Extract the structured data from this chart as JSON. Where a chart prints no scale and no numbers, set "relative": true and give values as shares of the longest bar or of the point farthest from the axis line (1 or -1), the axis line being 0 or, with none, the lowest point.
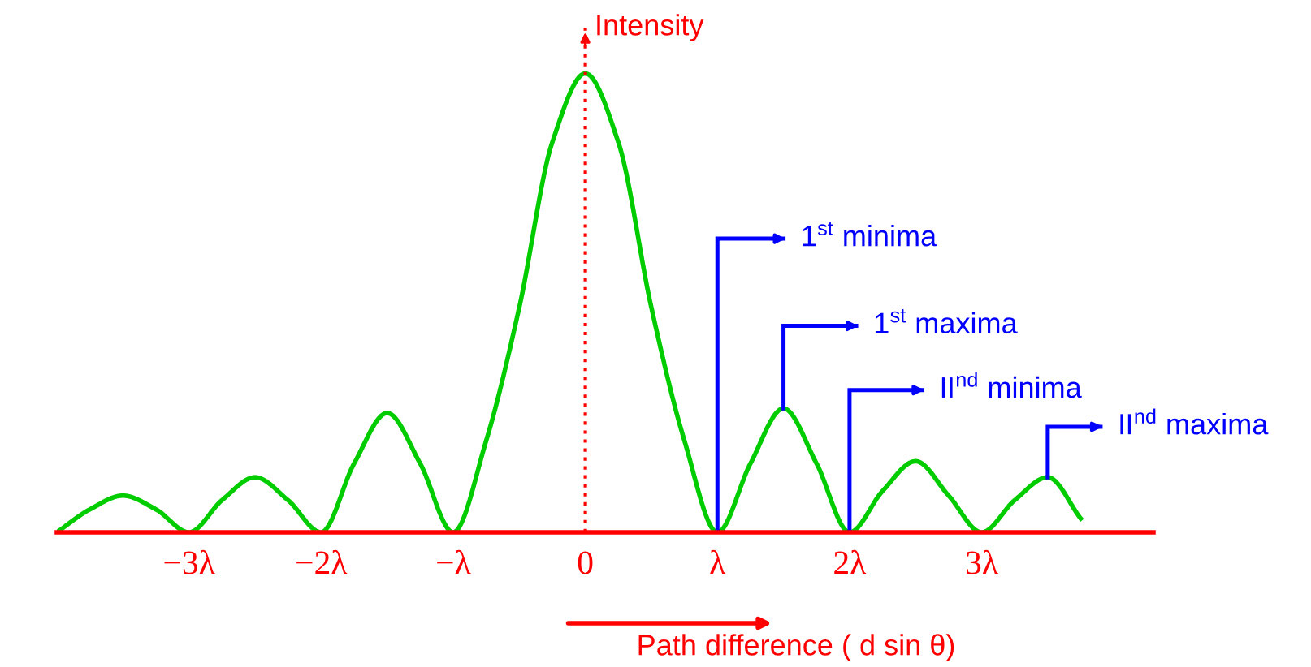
{
  "chart_data": {
    "type": "line",
    "relative": true,
    "ylabel": "Intensity",
    "xlabel": "Path difference ( d sin θ)",
    "x": [
      -4,
      -3.75,
      -3.5,
      -3.25,
      -3,
      -2.75,
      -2.5,
      -2.25,
      -2,
      -1.75,
      -1.5,
      -1.25,
      -1,
      -0.75,
      -0.5,
      -0.25,
      0,
      0.25,
      0.5,
      0.75,
      1,
      1.25,
      1.5,
      1.75,
      2,
      2.25,
      2.5,
      2.75,
      3,
      3.25,
      3.5,
      3.75
    ],
    "xlim": [
      -4,
      4.3
    ],
    "xticks": [
      {
        "value": -3,
        "label": "−3λ"
      },
      {
        "value": -2,
        "label": "−2λ"
      },
      {
        "value": -1,
        "label": "−λ"
      },
      0,
      {
        "value": 1,
        "label": "λ"
      },
      {
        "value": 2,
        "label": "2λ"
      },
      {
        "value": 3,
        "label": "3λ"
      }
    ],
    "series": [
      {
        "color": "#00cc00",
        "values": [
          0.0,
          0.05,
          0.08,
          0.05,
          0.0,
          0.07,
          0.12,
          0.07,
          0.0,
          0.15,
          0.26,
          0.15,
          0.0,
          0.2,
          0.49,
          0.85,
          1.0,
          0.85,
          0.49,
          0.2,
          0.0,
          0.15,
          0.27,
          0.15,
          0.0,
          0.09,
          0.155,
          0.08,
          0.0,
          0.07,
          0.12,
          0.03
        ]
      }
    ],
    "annotations": [
      {
        "text": "1$^{st}$ minima",
        "x": 1,
        "y": 0
      },
      {
        "text": "1$^{st}$ maxima",
        "x": 1.5,
        "y": 0.27
      },
      {
        "text": "II$^{nd}$ minima",
        "x": 2,
        "y": 0
      },
      {
        "text": "II$^{nd}$ maxima",
        "x": 3.5,
        "y": 0.12
      }
    ],
    "ref_lines": [
      {
        "axis": "x",
        "value": 0,
        "color": "#ff0000",
        "line_style": "dotted"
      }
    ],
    "grid": false,
    "legend": false,
    "marker": "none",
    "line_style": "solid"
  }
}
